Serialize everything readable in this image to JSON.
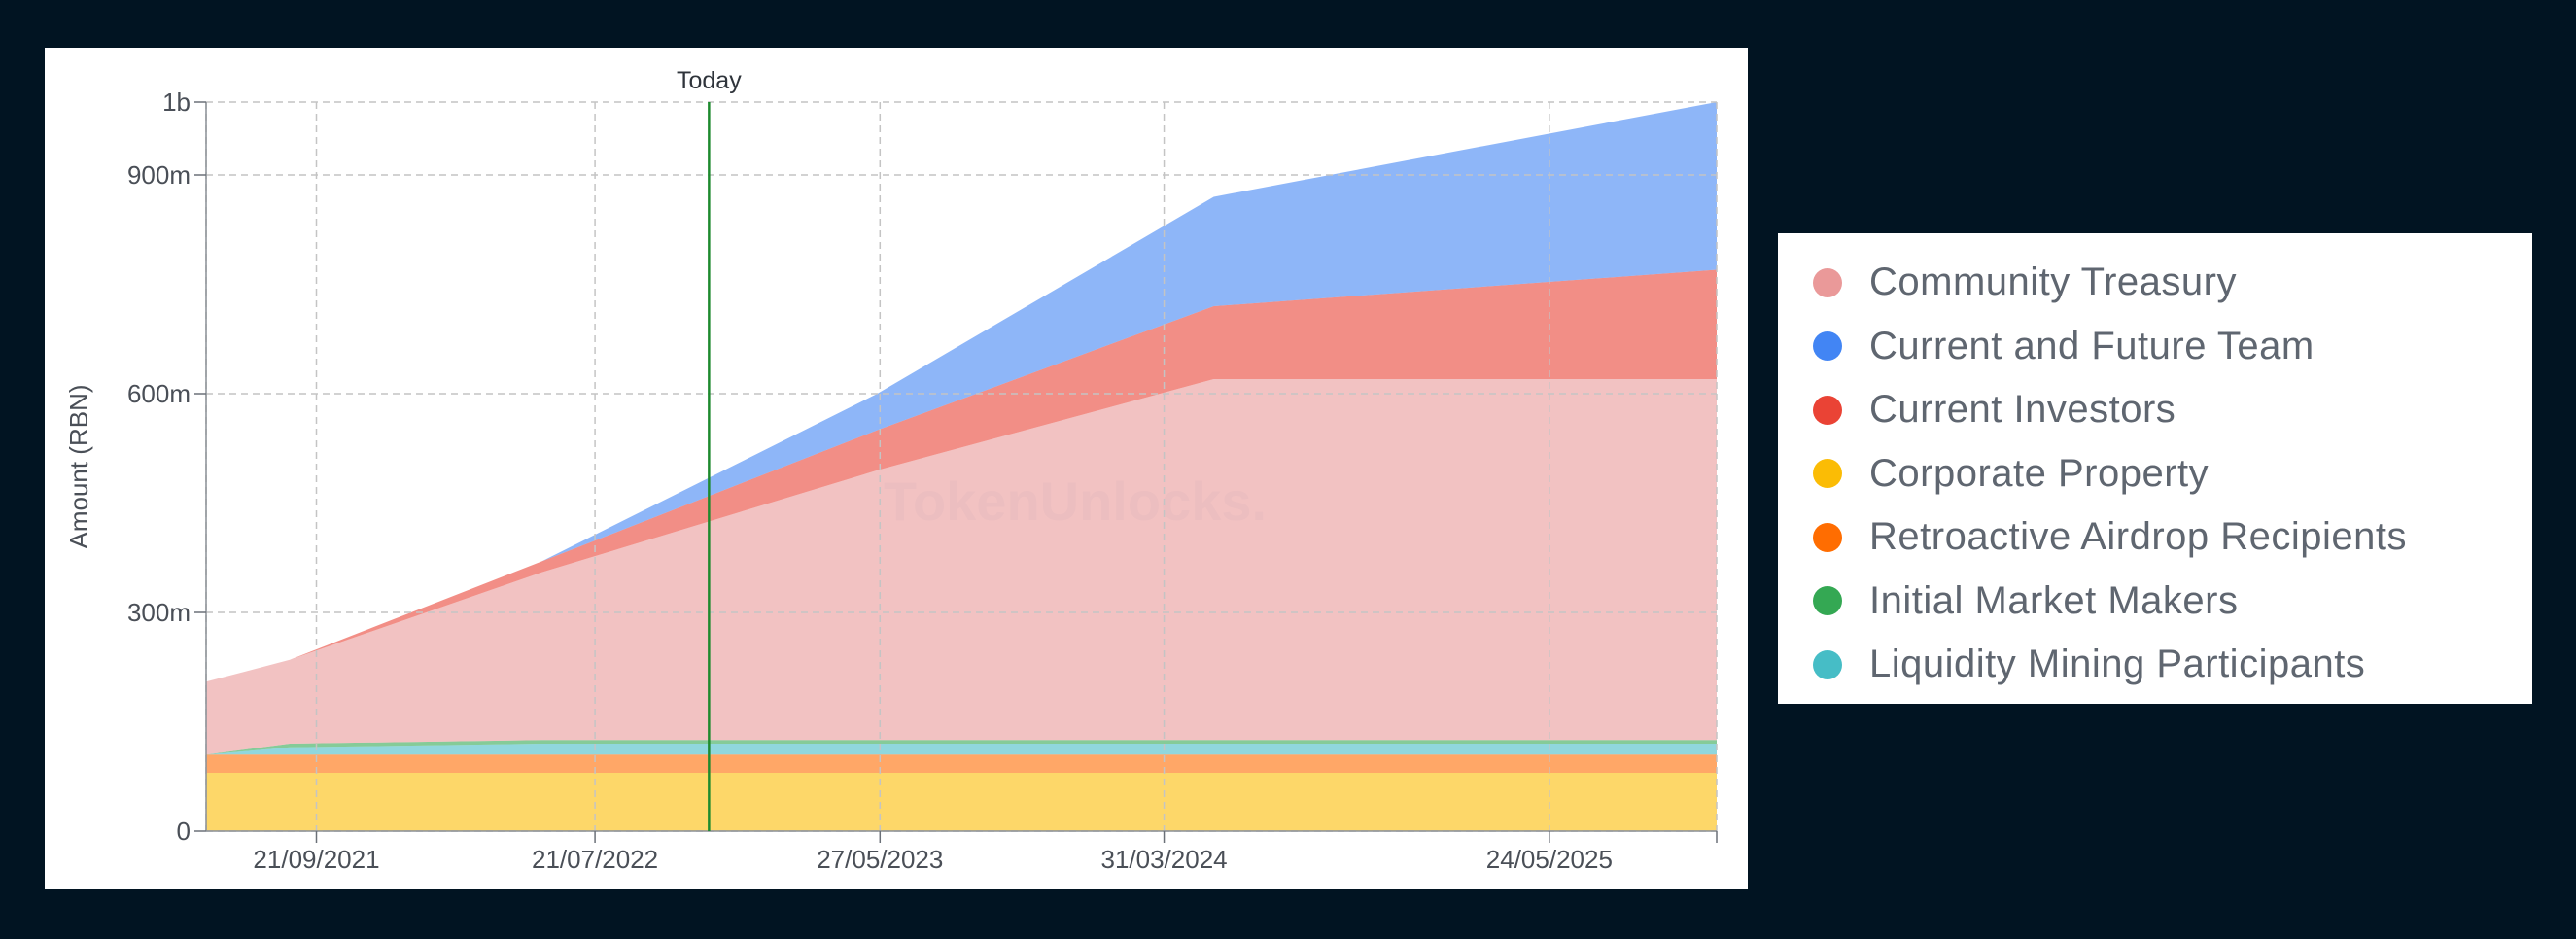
{
  "chart_data": {
    "type": "area",
    "stacked": true,
    "title": "",
    "xlabel": "",
    "ylabel": "Amount (RBN)",
    "ylim": [
      0,
      1000000000
    ],
    "xlim": [
      "2021-05-24",
      "2025-11-22"
    ],
    "y_ticks": [
      {
        "value": 0,
        "label": "0"
      },
      {
        "value": 300000000,
        "label": "300m"
      },
      {
        "value": 600000000,
        "label": "600m"
      },
      {
        "value": 900000000,
        "label": "900m"
      },
      {
        "value": 1000000000,
        "label": "1b"
      }
    ],
    "x_ticks": [
      {
        "value": "2021-09-21",
        "label": "21/09/2021"
      },
      {
        "value": "2022-07-21",
        "label": "21/07/2022"
      },
      {
        "value": "2023-05-27",
        "label": "27/05/2023"
      },
      {
        "value": "2024-03-31",
        "label": "31/03/2024"
      },
      {
        "value": "2025-05-24",
        "label": "24/05/2025"
      }
    ],
    "x_grid": [
      "2021-05-24",
      "2021-09-21",
      "2022-07-21",
      "2023-05-27",
      "2024-03-31",
      "2025-05-24",
      "2025-11-22"
    ],
    "grid": true,
    "grid_style": "dashed",
    "today_marker": {
      "date": "2022-11-22",
      "label": "Today",
      "color": "#1e8a2e"
    },
    "x": [
      "2021-05-24",
      "2021-08-23",
      "2022-05-24",
      "2023-05-24",
      "2024-05-24",
      "2025-11-22"
    ],
    "series": [
      {
        "name": "Corporate Property",
        "color": "#fbbc05",
        "values": [
          80000000,
          80000000,
          80000000,
          80000000,
          80000000,
          80000000
        ]
      },
      {
        "name": "Retroactive Airdrop Recipients",
        "color": "#ff6d01",
        "values": [
          25000000,
          25000000,
          25000000,
          25000000,
          25000000,
          25000000
        ]
      },
      {
        "name": "Liquidity Mining Participants",
        "color": "#46bdc6",
        "values": [
          0,
          10000000,
          15000000,
          15000000,
          15000000,
          15000000
        ]
      },
      {
        "name": "Initial Market Makers",
        "color": "#34a853",
        "values": [
          0,
          5000000,
          5000000,
          5000000,
          5000000,
          5000000
        ]
      },
      {
        "name": "Community Treasury",
        "color": "#ea9999",
        "values": [
          100000000,
          115000000,
          230000000,
          370000000,
          495000000,
          495000000
        ]
      },
      {
        "name": "Current Investors",
        "color": "#ea4335",
        "values": [
          0,
          0,
          15000000,
          55000000,
          100000000,
          150000000
        ]
      },
      {
        "name": "Current and Future Team",
        "color": "#4285f4",
        "values": [
          0,
          0,
          0,
          50000000,
          150000000,
          230000000
        ]
      }
    ],
    "legend_placement": "right",
    "legend": [
      {
        "name": "Community Treasury",
        "color": "#ea9999"
      },
      {
        "name": "Current and Future Team",
        "color": "#4285f4"
      },
      {
        "name": "Current Investors",
        "color": "#ea4335"
      },
      {
        "name": "Corporate Property",
        "color": "#fbbc05"
      },
      {
        "name": "Retroactive Airdrop Recipients",
        "color": "#ff6d01"
      },
      {
        "name": "Initial Market Makers",
        "color": "#34a853"
      },
      {
        "name": "Liquidity Mining Participants",
        "color": "#46bdc6"
      }
    ],
    "watermark": "TokenUnlocks."
  }
}
